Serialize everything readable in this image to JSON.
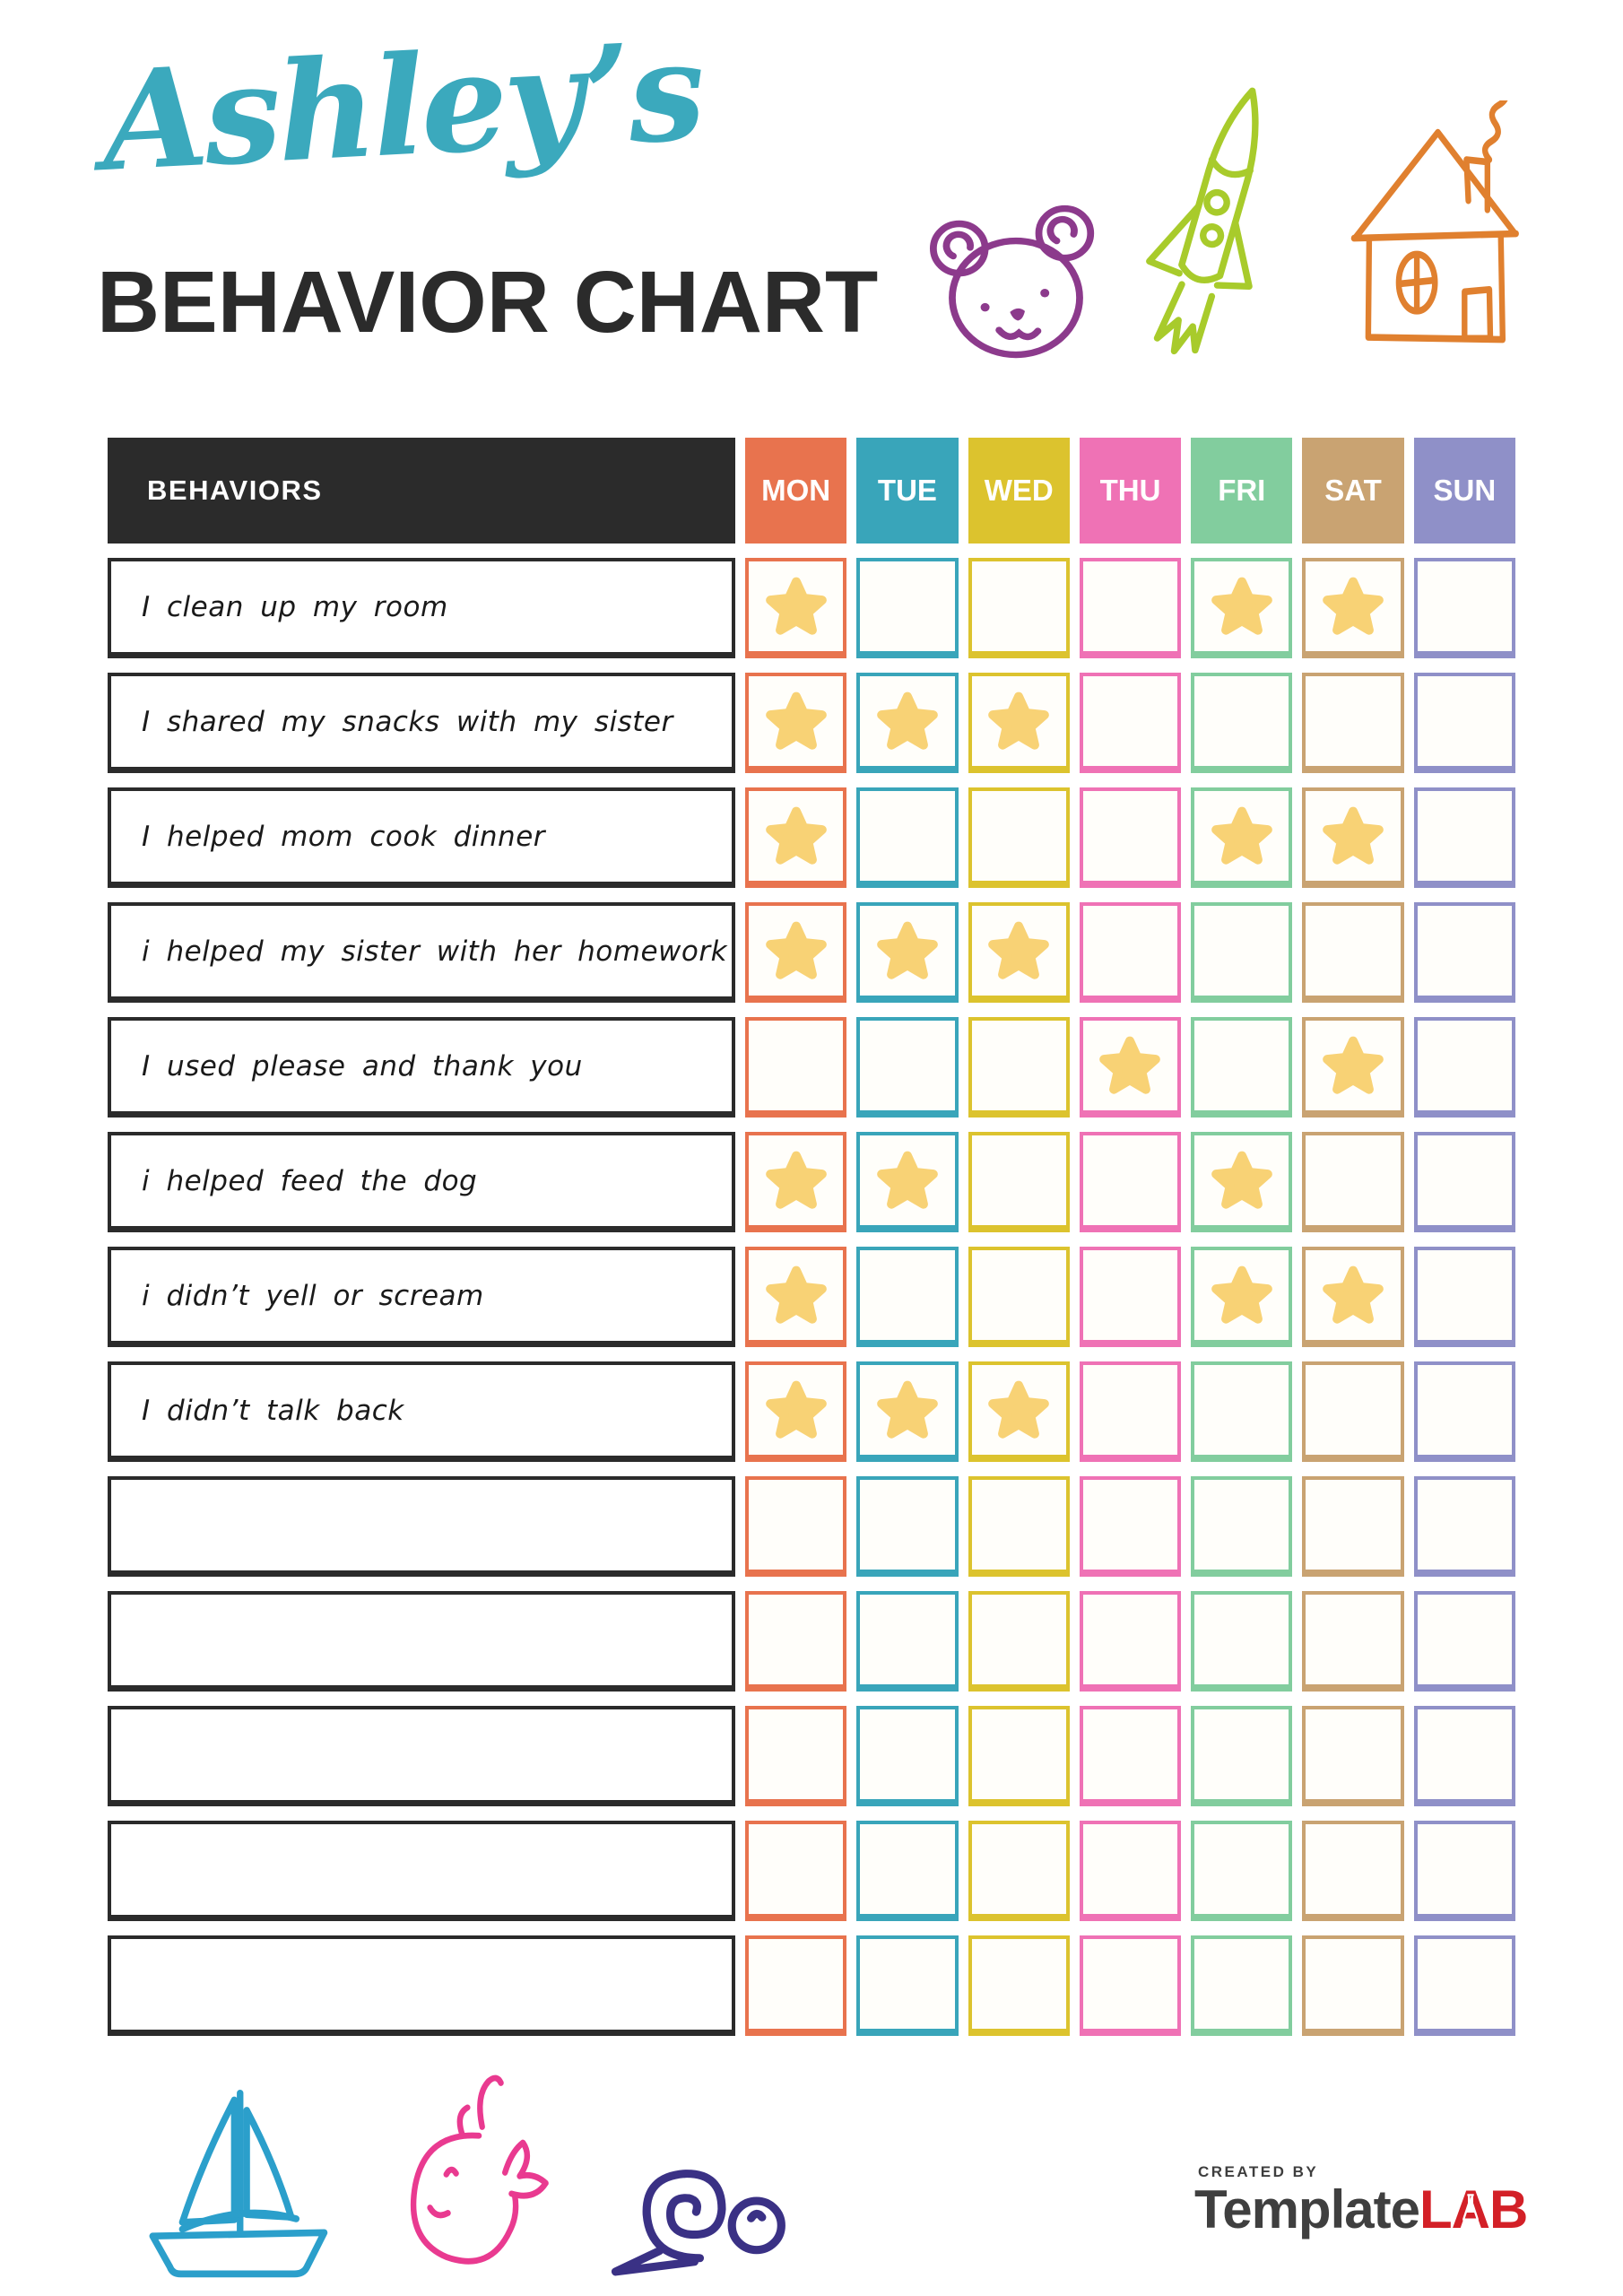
{
  "page": {
    "title_script": "Ashley’s",
    "title_main": "BEHAVIOR CHART"
  },
  "header_doodles": [
    {
      "icon": "teddy-bear-icon",
      "color": "#8C3A8C"
    },
    {
      "icon": "rocket-icon",
      "color": "#A8CB2B"
    },
    {
      "icon": "house-icon",
      "color": "#E0802F"
    }
  ],
  "table": {
    "behaviors_header": "BEHAVIORS",
    "days": [
      {
        "label": "MON",
        "color": "#E8734E"
      },
      {
        "label": "TUE",
        "color": "#39A5BA"
      },
      {
        "label": "WED",
        "color": "#DCC32E"
      },
      {
        "label": "THU",
        "color": "#EF72B5"
      },
      {
        "label": "FRI",
        "color": "#82CD9E"
      },
      {
        "label": "SAT",
        "color": "#C9A372"
      },
      {
        "label": "SUN",
        "color": "#8F90C8"
      }
    ],
    "star_color": "#F8D275",
    "rows": [
      {
        "label": "I clean up my room",
        "stars": [
          1,
          0,
          0,
          0,
          1,
          1,
          0
        ]
      },
      {
        "label": "I shared my snacks with my sister",
        "stars": [
          1,
          1,
          1,
          0,
          0,
          0,
          0
        ]
      },
      {
        "label": "I helped mom cook dinner",
        "stars": [
          1,
          0,
          0,
          0,
          1,
          1,
          0
        ]
      },
      {
        "label": "i helped my sister with her homework",
        "stars": [
          1,
          1,
          1,
          0,
          0,
          0,
          0
        ]
      },
      {
        "label": "I used please and thank you",
        "stars": [
          0,
          0,
          0,
          1,
          0,
          1,
          0
        ]
      },
      {
        "label": "i helped feed the dog",
        "stars": [
          1,
          1,
          0,
          0,
          1,
          0,
          0
        ]
      },
      {
        "label": "i didn’t yell or scream",
        "stars": [
          1,
          0,
          0,
          0,
          1,
          1,
          0
        ]
      },
      {
        "label": "I didn’t talk back",
        "stars": [
          1,
          1,
          1,
          0,
          0,
          0,
          0
        ]
      },
      {
        "label": "",
        "stars": [
          0,
          0,
          0,
          0,
          0,
          0,
          0
        ]
      },
      {
        "label": "",
        "stars": [
          0,
          0,
          0,
          0,
          0,
          0,
          0
        ]
      },
      {
        "label": "",
        "stars": [
          0,
          0,
          0,
          0,
          0,
          0,
          0
        ]
      },
      {
        "label": "",
        "stars": [
          0,
          0,
          0,
          0,
          0,
          0,
          0
        ]
      },
      {
        "label": "",
        "stars": [
          0,
          0,
          0,
          0,
          0,
          0,
          0
        ]
      }
    ]
  },
  "footer": {
    "doodles": [
      {
        "icon": "sailboat-icon",
        "color": "#2B9FCB"
      },
      {
        "icon": "whale-icon",
        "color": "#E93A90"
      },
      {
        "icon": "snail-icon",
        "color": "#3A3185"
      }
    ],
    "created_by": "CREATED BY",
    "logo_template": "Template",
    "logo_lab_l": "L",
    "logo_lab_a": "A",
    "logo_lab_b": "B"
  },
  "colors": {
    "title_script": "#3BA9BD",
    "ink": "#2B2B2B",
    "logo_gray": "#3F3F3F",
    "logo_red": "#D32027"
  }
}
